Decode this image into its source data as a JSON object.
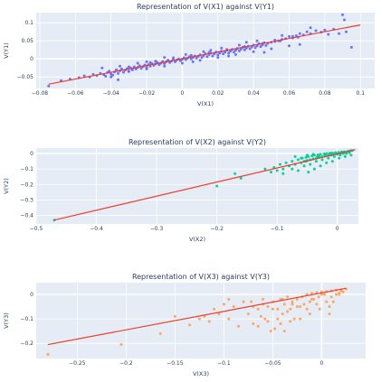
{
  "chart_data": [
    {
      "type": "scatter",
      "title": "Representation of V(X1) against V(Y1)",
      "xlabel": "V(X1)",
      "ylabel": "V(Y1)",
      "xlim": [
        -0.082,
        0.108
      ],
      "ylim": [
        -0.082,
        0.128
      ],
      "xticks": [
        -0.08,
        -0.06,
        -0.04,
        -0.02,
        0,
        0.02,
        0.04,
        0.06,
        0.08,
        0.1
      ],
      "xtick_labels": [
        "−0.08",
        "−0.06",
        "−0.04",
        "−0.02",
        "0",
        "0.02",
        "0.04",
        "0.06",
        "0.08",
        "0.1"
      ],
      "yticks": [
        -0.05,
        0,
        0.05,
        0.1
      ],
      "ytick_labels": [
        "−0.05",
        "0",
        "0.05",
        "0.1"
      ],
      "grid": true,
      "point_color": "#636efa",
      "line_color": "#ef3b2c",
      "series": [
        {
          "kind": "markers",
          "x": [
            -0.075,
            -0.068,
            -0.063,
            -0.058,
            -0.055,
            -0.052,
            -0.05,
            -0.048,
            -0.046,
            -0.044,
            -0.042,
            -0.041,
            -0.04,
            -0.038,
            -0.037,
            -0.036,
            -0.035,
            -0.034,
            -0.033,
            -0.032,
            -0.031,
            -0.03,
            -0.029,
            -0.028,
            -0.027,
            -0.026,
            -0.025,
            -0.024,
            -0.023,
            -0.022,
            -0.021,
            -0.02,
            -0.019,
            -0.018,
            -0.017,
            -0.016,
            -0.015,
            -0.014,
            -0.013,
            -0.012,
            -0.011,
            -0.01,
            -0.009,
            -0.008,
            -0.007,
            -0.006,
            -0.005,
            -0.004,
            -0.003,
            -0.002,
            -0.001,
            0,
            0.001,
            0.002,
            0.003,
            0.004,
            0.005,
            0.006,
            0.007,
            0.008,
            0.009,
            0.01,
            0.011,
            0.012,
            0.013,
            0.014,
            0.015,
            0.016,
            0.017,
            0.018,
            0.019,
            0.02,
            0.021,
            0.022,
            0.023,
            0.024,
            0.025,
            0.026,
            0.027,
            0.028,
            0.029,
            0.03,
            0.031,
            0.032,
            0.033,
            0.034,
            0.035,
            0.036,
            0.037,
            0.038,
            0.039,
            0.04,
            0.041,
            0.042,
            0.043,
            0.044,
            0.045,
            0.046,
            0.047,
            0.048,
            0.05,
            0.052,
            0.054,
            0.056,
            0.058,
            0.06,
            0.062,
            0.064,
            0.066,
            0.068,
            0.07,
            0.072,
            0.075,
            0.078,
            0.08,
            0.082,
            0.085,
            0.088,
            0.09,
            0.091,
            0.092,
            0.095,
            -0.043,
            -0.039,
            -0.035,
            -0.03,
            -0.025,
            -0.02,
            -0.015,
            -0.01,
            -0.005,
            0.0,
            0.005,
            0.01,
            0.015,
            0.02,
            0.025,
            0.03,
            0.035,
            0.04,
            0.045,
            0.05,
            0.055,
            0.06,
            0.065,
            -0.045,
            -0.036,
            -0.028,
            -0.018,
            -0.008,
            0.002,
            0.012,
            0.022,
            0.032,
            0.042,
            0.052,
            0.062,
            0.072,
            -0.04,
            -0.03,
            -0.02,
            -0.01,
            0.006,
            0.016,
            0.026,
            0.036,
            0.046,
            0.056,
            0.066
          ],
          "y": [
            -0.075,
            -0.06,
            -0.056,
            -0.052,
            -0.047,
            -0.05,
            -0.043,
            -0.046,
            -0.04,
            -0.044,
            -0.038,
            -0.034,
            -0.042,
            -0.036,
            -0.03,
            -0.04,
            -0.033,
            -0.028,
            -0.037,
            -0.031,
            -0.027,
            -0.034,
            -0.025,
            -0.03,
            -0.022,
            -0.028,
            -0.024,
            -0.019,
            -0.026,
            -0.021,
            -0.017,
            -0.023,
            -0.016,
            -0.02,
            -0.013,
            -0.018,
            -0.014,
            -0.01,
            -0.016,
            -0.012,
            -0.007,
            -0.013,
            -0.008,
            -0.004,
            -0.01,
            -0.006,
            -0.002,
            -0.008,
            -0.003,
            0.0,
            -0.005,
            -0.001,
            0.003,
            -0.002,
            0.002,
            0.006,
            0.0,
            0.004,
            0.008,
            0.002,
            0.007,
            0.011,
            0.004,
            0.009,
            0.014,
            0.006,
            0.012,
            0.016,
            0.008,
            0.014,
            0.019,
            0.011,
            0.016,
            0.021,
            0.014,
            0.019,
            0.024,
            0.016,
            0.021,
            0.026,
            0.019,
            0.024,
            0.029,
            0.022,
            0.027,
            0.032,
            0.025,
            0.03,
            0.035,
            0.028,
            0.033,
            0.038,
            0.031,
            0.036,
            0.042,
            0.034,
            0.039,
            0.045,
            0.037,
            0.043,
            0.046,
            0.048,
            0.05,
            0.054,
            0.056,
            0.062,
            0.058,
            0.064,
            0.07,
            0.066,
            0.075,
            0.07,
            0.078,
            0.074,
            0.08,
            0.068,
            0.082,
            0.07,
            0.122,
            0.108,
            0.075,
            0.032,
            -0.048,
            -0.045,
            -0.02,
            -0.035,
            -0.012,
            -0.028,
            -0.006,
            -0.02,
            0.003,
            -0.012,
            0.01,
            -0.004,
            0.018,
            0.004,
            0.026,
            0.012,
            0.034,
            0.02,
            0.042,
            0.028,
            0.05,
            0.036,
            0.06,
            -0.025,
            -0.058,
            -0.03,
            -0.01,
            -0.004,
            0.012,
            0.02,
            0.03,
            0.038,
            0.05,
            0.052,
            0.062,
            0.086,
            -0.05,
            -0.022,
            -0.008,
            0.004,
            -0.008,
            0.024,
            0.008,
            0.046,
            0.018,
            0.065,
            0.04
          ]
        },
        {
          "kind": "line",
          "x": [
            -0.075,
            0.1
          ],
          "y": [
            -0.07,
            0.094
          ]
        }
      ]
    },
    {
      "type": "scatter",
      "title": "Representation of V(X2) against V(Y2)",
      "xlabel": "V(X2)",
      "ylabel": "V(Y2)",
      "xlim": [
        -0.5,
        0.035
      ],
      "ylim": [
        -0.455,
        0.035
      ],
      "xticks": [
        -0.5,
        -0.4,
        -0.3,
        -0.2,
        -0.1,
        0
      ],
      "xtick_labels": [
        "−0.5",
        "−0.4",
        "−0.3",
        "−0.2",
        "−0.1",
        "0"
      ],
      "yticks": [
        -0.4,
        -0.3,
        -0.2,
        -0.1,
        0
      ],
      "ytick_labels": [
        "−0.4",
        "−0.3",
        "−0.2",
        "−0.1",
        "0"
      ],
      "grid": true,
      "point_color": "#00cc96",
      "line_color": "#ef3b2c",
      "series": [
        {
          "kind": "markers",
          "x": [
            -0.47,
            -0.2,
            -0.17,
            -0.16,
            -0.11,
            -0.105,
            -0.1,
            -0.095,
            -0.09,
            -0.085,
            -0.08,
            -0.075,
            -0.07,
            -0.065,
            -0.06,
            -0.058,
            -0.055,
            -0.052,
            -0.05,
            -0.048,
            -0.045,
            -0.042,
            -0.04,
            -0.038,
            -0.035,
            -0.032,
            -0.03,
            -0.028,
            -0.025,
            -0.022,
            -0.02,
            -0.018,
            -0.015,
            -0.012,
            -0.01,
            -0.008,
            -0.005,
            -0.003,
            0.0,
            0.002,
            0.005,
            0.008,
            0.01,
            0.012,
            0.015,
            0.018,
            0.02,
            0.022,
            0.025,
            -0.075,
            -0.065,
            -0.055,
            -0.045,
            -0.035,
            -0.025,
            -0.015,
            -0.005,
            0.005,
            0.015,
            -0.07,
            -0.06,
            -0.05,
            -0.04,
            -0.03,
            -0.02,
            -0.01,
            0.0,
            0.01,
            0.02,
            -0.048,
            -0.038,
            -0.028,
            -0.018,
            -0.008,
            0.003,
            0.013,
            0.023,
            -0.09,
            -0.12,
            -0.052,
            -0.033,
            -0.013,
            0.007
          ],
          "y": [
            -0.43,
            -0.21,
            -0.13,
            -0.16,
            -0.12,
            -0.09,
            -0.11,
            -0.07,
            -0.1,
            -0.06,
            -0.08,
            -0.05,
            -0.07,
            -0.04,
            -0.06,
            -0.03,
            -0.05,
            -0.025,
            -0.045,
            -0.02,
            -0.04,
            -0.015,
            -0.035,
            -0.01,
            -0.03,
            -0.008,
            -0.025,
            -0.005,
            -0.02,
            -0.003,
            -0.015,
            0.0,
            -0.012,
            0.002,
            -0.008,
            0.004,
            -0.005,
            0.006,
            -0.002,
            0.008,
            0.0,
            0.01,
            0.005,
            0.012,
            0.008,
            0.015,
            0.01,
            0.018,
            0.02,
            -0.1,
            -0.11,
            -0.08,
            -0.07,
            -0.05,
            -0.04,
            -0.03,
            -0.02,
            -0.01,
            0.0,
            -0.02,
            -0.03,
            -0.01,
            -0.005,
            -0.02,
            -0.01,
            -0.01,
            -0.005,
            0.0,
            0.005,
            -0.12,
            -0.1,
            -0.08,
            -0.06,
            -0.05,
            -0.03,
            -0.02,
            -0.01,
            -0.13,
            -0.1,
            -0.05,
            -0.02,
            0.0,
            0.01
          ]
        },
        {
          "kind": "line",
          "x": [
            -0.47,
            0.03
          ],
          "y": [
            -0.43,
            0.025
          ]
        }
      ]
    },
    {
      "type": "scatter",
      "title": "Representation of V(X3) against V(Y3)",
      "xlabel": "V(X3)",
      "ylabel": "V(Y3)",
      "xlim": [
        -0.292,
        0.045
      ],
      "ylim": [
        -0.262,
        0.048
      ],
      "xticks": [
        -0.25,
        -0.2,
        -0.15,
        -0.1,
        -0.05,
        0
      ],
      "xtick_labels": [
        "−0.25",
        "−0.2",
        "−0.15",
        "−0.1",
        "−0.05",
        "0"
      ],
      "yticks": [
        -0.2,
        -0.1,
        0
      ],
      "ytick_labels": [
        "−0.2",
        "−0.1",
        "0"
      ],
      "grid": true,
      "point_color": "#ffa15a",
      "line_color": "#ef3b2c",
      "series": [
        {
          "kind": "markers",
          "x": [
            -0.28,
            -0.205,
            -0.165,
            -0.15,
            -0.135,
            -0.125,
            -0.12,
            -0.115,
            -0.11,
            -0.105,
            -0.1,
            -0.095,
            -0.09,
            -0.085,
            -0.08,
            -0.075,
            -0.07,
            -0.065,
            -0.06,
            -0.058,
            -0.055,
            -0.05,
            -0.048,
            -0.045,
            -0.042,
            -0.04,
            -0.038,
            -0.035,
            -0.032,
            -0.03,
            -0.028,
            -0.025,
            -0.022,
            -0.02,
            -0.018,
            -0.015,
            -0.012,
            -0.01,
            -0.008,
            -0.005,
            -0.003,
            0.0,
            0.003,
            0.005,
            0.008,
            0.01,
            0.012,
            0.015,
            0.018,
            0.02,
            0.022,
            0.025,
            -0.07,
            -0.06,
            -0.05,
            -0.04,
            -0.03,
            -0.02,
            -0.01,
            0.0,
            0.01,
            0.02,
            -0.045,
            -0.035,
            -0.025,
            -0.015,
            -0.005,
            0.005,
            0.015,
            -0.052,
            -0.032,
            -0.012,
            0.008,
            -0.095,
            -0.072,
            -0.062,
            -0.042,
            -0.022,
            -0.002,
            0.018,
            -0.065,
            -0.055,
            -0.038
          ],
          "y": [
            -0.245,
            -0.205,
            -0.16,
            -0.09,
            -0.125,
            -0.1,
            -0.09,
            -0.11,
            -0.06,
            -0.08,
            -0.04,
            -0.1,
            -0.05,
            -0.13,
            -0.03,
            -0.08,
            -0.12,
            -0.06,
            -0.02,
            -0.1,
            -0.05,
            -0.03,
            -0.14,
            -0.06,
            -0.02,
            -0.08,
            -0.04,
            -0.01,
            -0.06,
            -0.03,
            -0.1,
            -0.02,
            -0.05,
            -0.01,
            -0.04,
            0.0,
            -0.03,
            0.005,
            -0.02,
            0.008,
            -0.01,
            0.01,
            0.0,
            0.012,
            -0.08,
            0.015,
            -0.03,
            0.018,
            0.005,
            0.02,
            0.01,
            0.022,
            -0.05,
            -0.04,
            -0.06,
            -0.02,
            -0.04,
            -0.01,
            -0.02,
            0.0,
            -0.01,
            0.015,
            -0.1,
            -0.07,
            -0.05,
            -0.06,
            -0.04,
            -0.03,
            0.0,
            -0.15,
            -0.11,
            -0.08,
            -0.05,
            -0.02,
            -0.03,
            -0.09,
            -0.12,
            -0.1,
            -0.06,
            0.0,
            -0.13,
            -0.11,
            -0.15
          ]
        },
        {
          "kind": "line",
          "x": [
            -0.28,
            0.025
          ],
          "y": [
            -0.205,
            0.025
          ]
        }
      ]
    }
  ]
}
